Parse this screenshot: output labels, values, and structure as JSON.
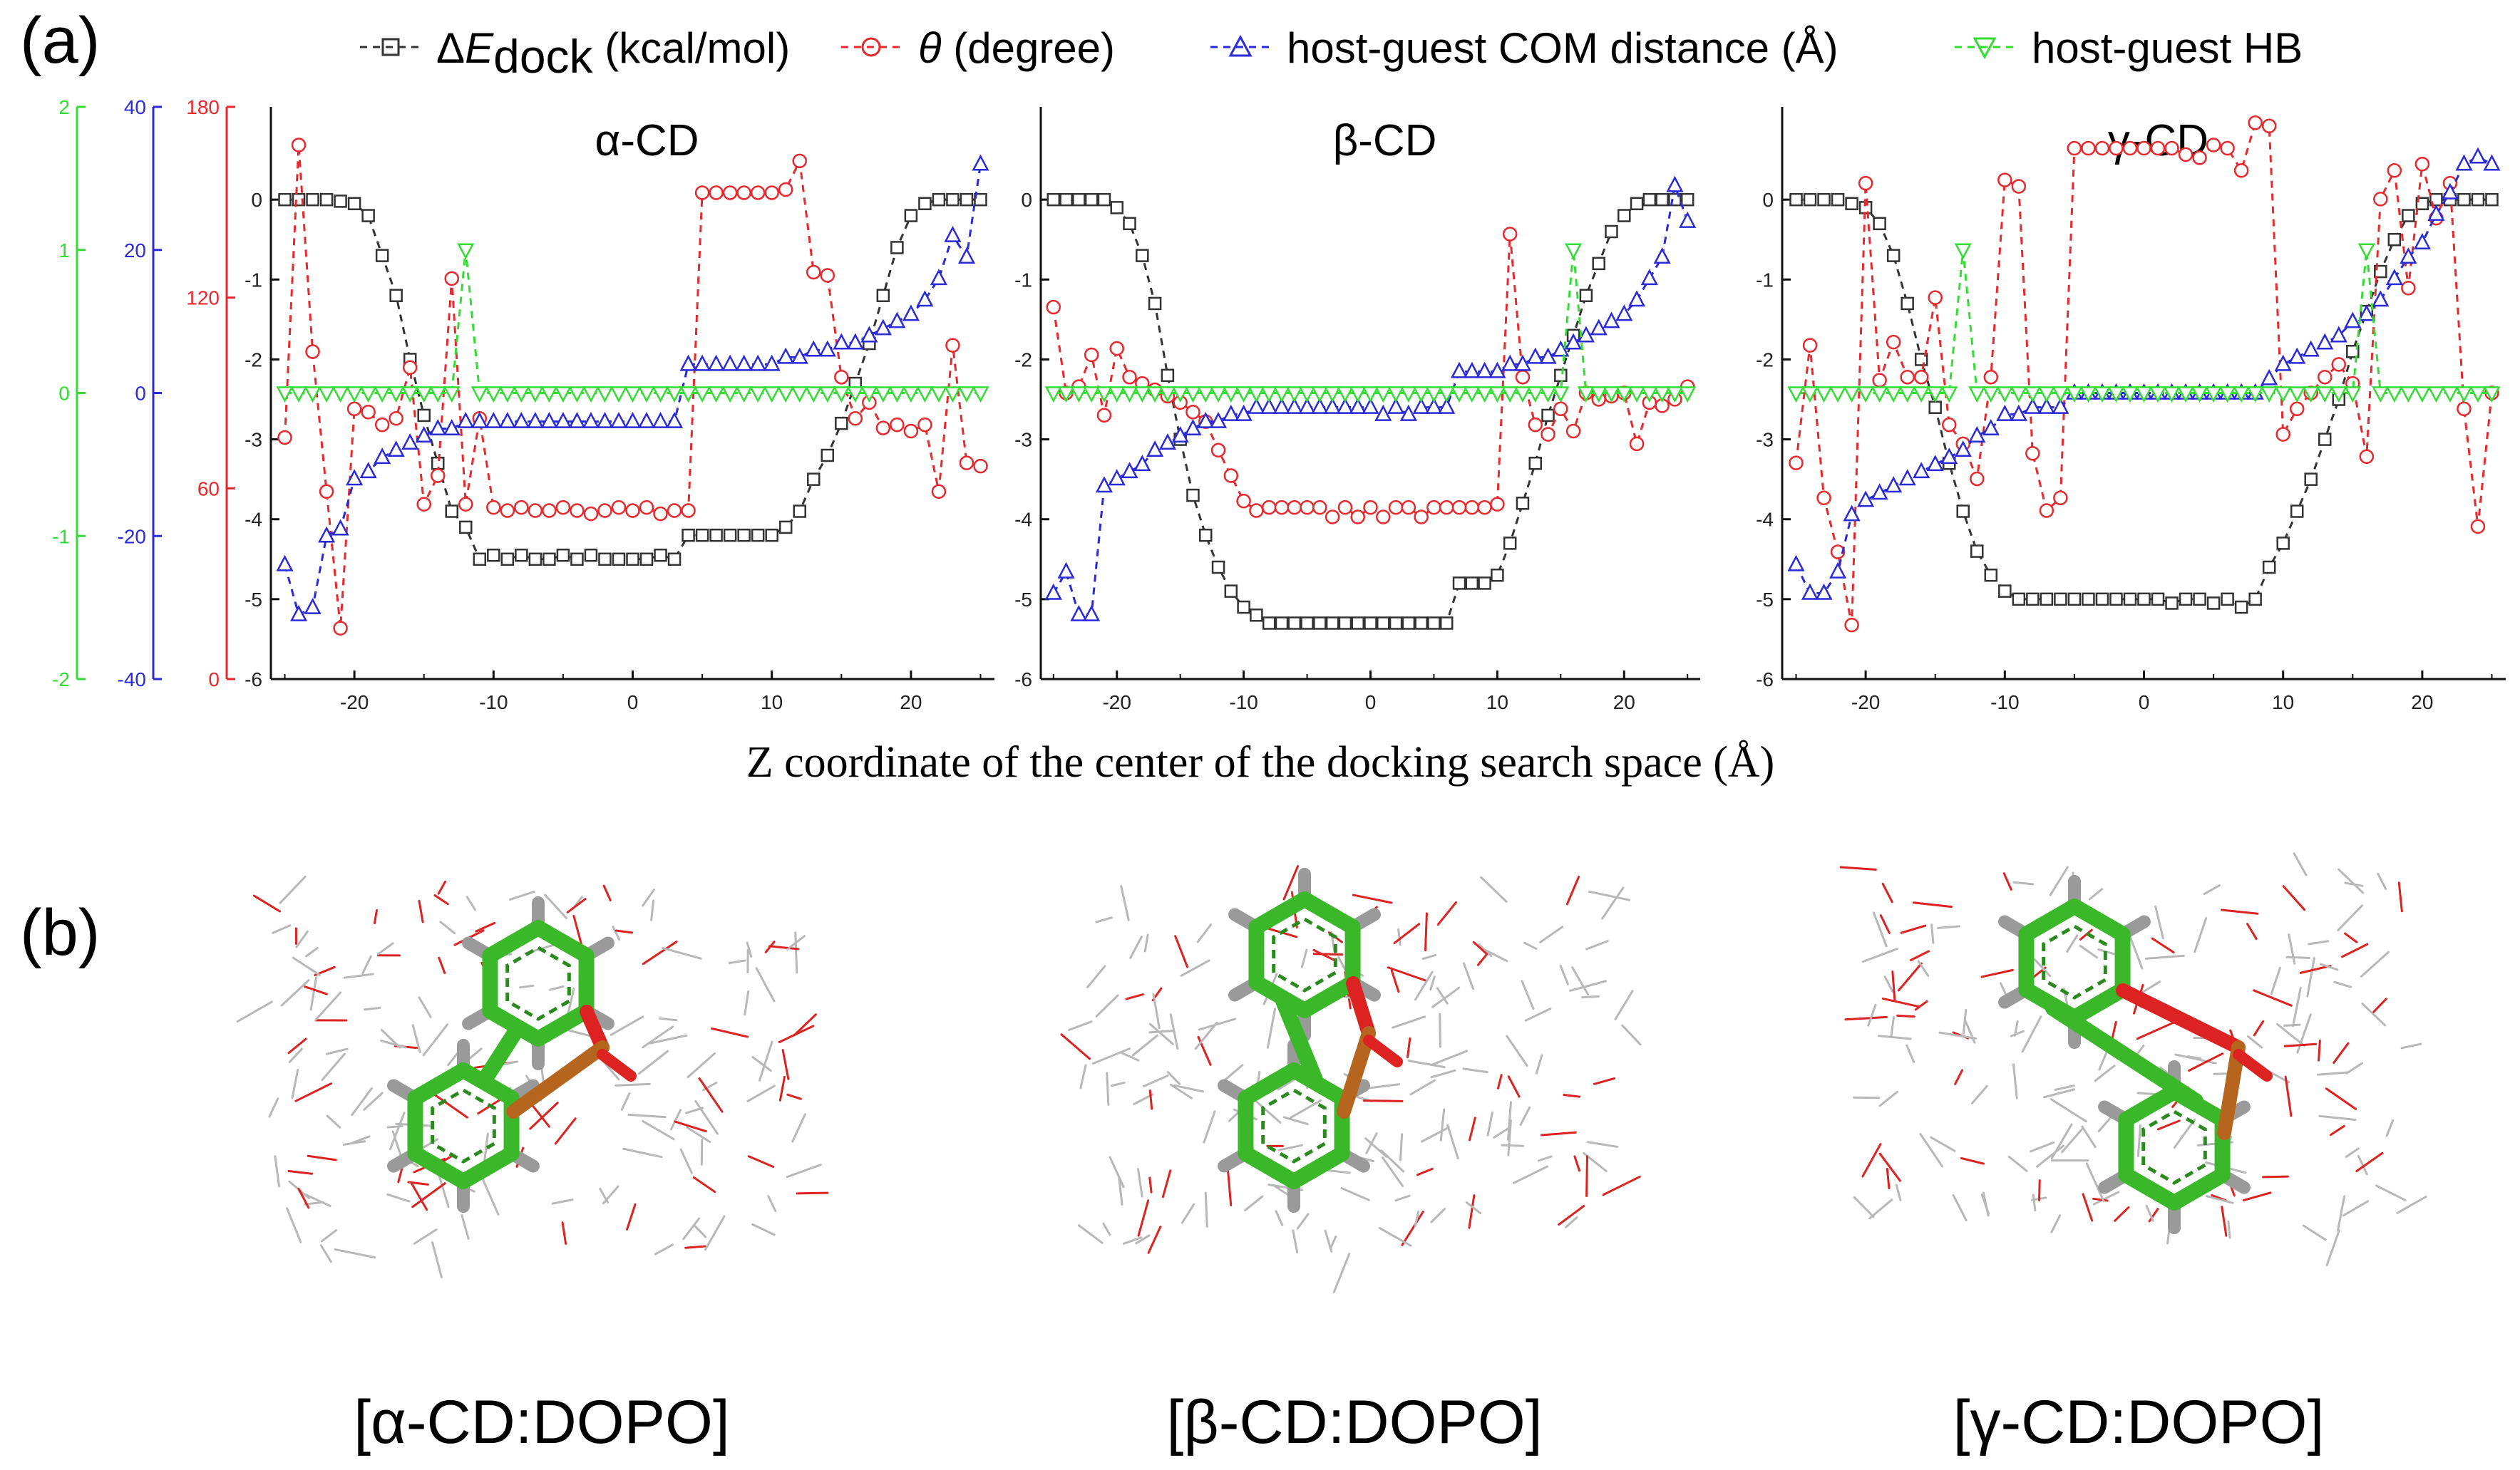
{
  "figure": {
    "panel_a_label": "(a)",
    "panel_b_label": "(b)",
    "x_axis_label": "Z coordinate of the center of the docking search space (Å)"
  },
  "legend": [
    {
      "key": "E",
      "prefix": "Δ",
      "symbol": "E",
      "subscript": "dock",
      "suffix": " (kcal/mol)",
      "color": "#333333",
      "marker": "square"
    },
    {
      "key": "theta",
      "prefix": "",
      "symbol": "θ",
      "subscript": "",
      "suffix": " (degree)",
      "color": "#e8282d",
      "marker": "circle"
    },
    {
      "key": "com",
      "prefix": "",
      "symbol": "",
      "subscript": "",
      "suffix": "host-guest COM distance (Å)",
      "color": "#2a2ad8",
      "marker": "triangle-up"
    },
    {
      "key": "hb",
      "prefix": "",
      "symbol": "",
      "subscript": "",
      "suffix": "host-guest HB",
      "color": "#33dd33",
      "marker": "triangle-down"
    }
  ],
  "chart_data": [
    {
      "type": "line",
      "title": "α-CD",
      "x": [
        -25,
        -24,
        -23,
        -22,
        -21,
        -20,
        -19,
        -18,
        -17,
        -16,
        -15,
        -14,
        -13,
        -12,
        -11,
        -10,
        -9,
        -8,
        -7,
        -6,
        -5,
        -4,
        -3,
        -2,
        -1,
        0,
        1,
        2,
        3,
        4,
        5,
        6,
        7,
        8,
        9,
        10,
        11,
        12,
        13,
        14,
        15,
        16,
        17,
        18,
        19,
        20,
        21,
        22,
        23,
        24,
        25
      ],
      "xlim": [
        -26,
        26
      ],
      "xticks": [
        -20,
        -10,
        0,
        10,
        20
      ],
      "series": [
        {
          "key": "E",
          "axis": "left",
          "ylim": [
            -6,
            1
          ],
          "values": [
            0,
            0,
            0,
            0,
            -0.02,
            -0.05,
            -0.2,
            -0.7,
            -1.2,
            -2.0,
            -2.7,
            -3.3,
            -3.9,
            -4.1,
            -4.5,
            -4.45,
            -4.5,
            -4.45,
            -4.5,
            -4.5,
            -4.45,
            -4.5,
            -4.45,
            -4.5,
            -4.5,
            -4.5,
            -4.5,
            -4.45,
            -4.5,
            -4.2,
            -4.2,
            -4.2,
            -4.2,
            -4.2,
            -4.2,
            -4.2,
            -4.1,
            -3.9,
            -3.5,
            -3.2,
            -2.8,
            -2.3,
            -1.8,
            -1.2,
            -0.6,
            -0.2,
            -0.05,
            0,
            0,
            0,
            0
          ]
        },
        {
          "key": "theta",
          "axis": "theta",
          "ylim": [
            0,
            180
          ],
          "values": [
            76,
            168,
            103,
            59,
            16,
            85,
            84,
            80,
            82,
            98,
            55,
            64,
            126,
            55,
            82,
            54,
            53,
            54,
            53,
            53,
            54,
            53,
            52,
            53,
            54,
            53,
            54,
            52,
            53,
            53,
            153,
            153,
            153,
            153,
            153,
            153,
            154,
            163,
            128,
            127,
            95,
            82,
            87,
            79,
            80,
            78,
            80,
            59,
            105,
            68,
            67
          ]
        },
        {
          "key": "com",
          "axis": "com",
          "ylim": [
            -40,
            40
          ],
          "values": [
            -24,
            -31,
            -30,
            -20,
            -19,
            -12,
            -11,
            -9,
            -8,
            -7,
            -6,
            -5,
            -5,
            -4,
            -4,
            -4,
            -4,
            -4,
            -4,
            -4,
            -4,
            -4,
            -4,
            -4,
            -4,
            -4,
            -4,
            -4,
            -4,
            4,
            4,
            4,
            4,
            4,
            4,
            4,
            5,
            5,
            6,
            6,
            7,
            7,
            8,
            9,
            10,
            11,
            13,
            16,
            22,
            19,
            32
          ]
        },
        {
          "key": "hb",
          "axis": "hb",
          "ylim": [
            -2,
            2
          ],
          "values": [
            0,
            0,
            0,
            0,
            0,
            0,
            0,
            0,
            0,
            0,
            0,
            0,
            0,
            1,
            0,
            0,
            0,
            0,
            0,
            0,
            0,
            0,
            0,
            0,
            0,
            0,
            0,
            0,
            0,
            0,
            0,
            0,
            0,
            0,
            0,
            0,
            0,
            0,
            0,
            0,
            0,
            0,
            0,
            0,
            0,
            0,
            0,
            0,
            0,
            0,
            0
          ]
        }
      ]
    },
    {
      "type": "line",
      "title": "β-CD",
      "x": [
        -25,
        -24,
        -23,
        -22,
        -21,
        -20,
        -19,
        -18,
        -17,
        -16,
        -15,
        -14,
        -13,
        -12,
        -11,
        -10,
        -9,
        -8,
        -7,
        -6,
        -5,
        -4,
        -3,
        -2,
        -1,
        0,
        1,
        2,
        3,
        4,
        5,
        6,
        7,
        8,
        9,
        10,
        11,
        12,
        13,
        14,
        15,
        16,
        17,
        18,
        19,
        20,
        21,
        22,
        23,
        24,
        25
      ],
      "xlim": [
        -26,
        26
      ],
      "xticks": [
        -20,
        -10,
        0,
        10,
        20
      ],
      "series": [
        {
          "key": "E",
          "axis": "left",
          "ylim": [
            -6,
            1
          ],
          "values": [
            0,
            0,
            0,
            0,
            0,
            -0.1,
            -0.3,
            -0.7,
            -1.3,
            -2.2,
            -3.0,
            -3.7,
            -4.2,
            -4.6,
            -4.9,
            -5.1,
            -5.2,
            -5.3,
            -5.3,
            -5.3,
            -5.3,
            -5.3,
            -5.3,
            -5.3,
            -5.3,
            -5.3,
            -5.3,
            -5.3,
            -5.3,
            -5.3,
            -5.3,
            -5.3,
            -4.8,
            -4.8,
            -4.8,
            -4.7,
            -4.3,
            -3.8,
            -3.3,
            -2.7,
            -2.2,
            -1.7,
            -1.2,
            -0.8,
            -0.4,
            -0.2,
            -0.05,
            0,
            0,
            0,
            0
          ]
        },
        {
          "key": "theta",
          "axis": "theta",
          "ylim": [
            0,
            180
          ],
          "values": [
            117,
            90,
            92,
            102,
            83,
            104,
            95,
            93,
            91,
            89,
            87,
            84,
            81,
            72,
            64,
            56,
            53,
            54,
            54,
            54,
            54,
            54,
            51,
            54,
            51,
            54,
            51,
            54,
            54,
            51,
            54,
            54,
            54,
            54,
            54,
            55,
            140,
            95,
            80,
            77,
            85,
            78,
            90,
            88,
            89,
            90,
            74,
            87,
            86,
            88,
            92
          ]
        },
        {
          "key": "com",
          "axis": "com",
          "ylim": [
            -40,
            40
          ],
          "values": [
            -28,
            -25,
            -31,
            -31,
            -13,
            -12,
            -11,
            -10,
            -8,
            -7,
            -6,
            -5,
            -4,
            -4,
            -3,
            -3,
            -2,
            -2,
            -2,
            -2,
            -2,
            -2,
            -2,
            -2,
            -2,
            -2,
            -3,
            -2,
            -3,
            -2,
            -2,
            -2,
            3,
            3,
            3,
            3,
            4,
            4,
            5,
            5,
            6,
            7,
            8,
            9,
            10,
            11,
            13,
            16,
            19,
            29,
            24
          ]
        },
        {
          "key": "hb",
          "axis": "hb",
          "ylim": [
            -2,
            2
          ],
          "values": [
            0,
            0,
            0,
            0,
            0,
            0,
            0,
            0,
            0,
            0,
            0,
            0,
            0,
            0,
            0,
            0,
            0,
            0,
            0,
            0,
            0,
            0,
            0,
            0,
            0,
            0,
            0,
            0,
            0,
            0,
            0,
            0,
            0,
            0,
            0,
            0,
            0,
            0,
            0,
            0,
            0,
            1,
            0,
            0,
            0,
            0,
            0,
            0,
            0,
            0,
            0
          ]
        }
      ]
    },
    {
      "type": "line",
      "title": "γ-CD",
      "x": [
        -25,
        -24,
        -23,
        -22,
        -21,
        -20,
        -19,
        -18,
        -17,
        -16,
        -15,
        -14,
        -13,
        -12,
        -11,
        -10,
        -9,
        -8,
        -7,
        -6,
        -5,
        -4,
        -3,
        -2,
        -1,
        0,
        1,
        2,
        3,
        4,
        5,
        6,
        7,
        8,
        9,
        10,
        11,
        12,
        13,
        14,
        15,
        16,
        17,
        18,
        19,
        20,
        21,
        22,
        23,
        24,
        25
      ],
      "xlim": [
        -26,
        26
      ],
      "xticks": [
        -20,
        -10,
        0,
        10,
        20
      ],
      "series": [
        {
          "key": "E",
          "axis": "left",
          "ylim": [
            -6,
            1
          ],
          "values": [
            0,
            0,
            0,
            0,
            -0.05,
            -0.1,
            -0.3,
            -0.7,
            -1.3,
            -2.0,
            -2.6,
            -3.3,
            -3.9,
            -4.4,
            -4.7,
            -4.9,
            -5.0,
            -5.0,
            -5.0,
            -5.0,
            -5.0,
            -5.0,
            -5.0,
            -5.0,
            -5.0,
            -5.0,
            -5.0,
            -5.05,
            -5.0,
            -5.0,
            -5.05,
            -5.0,
            -5.1,
            -5.0,
            -4.6,
            -4.3,
            -3.9,
            -3.5,
            -3.0,
            -2.5,
            -1.9,
            -1.4,
            -0.9,
            -0.5,
            -0.2,
            -0.05,
            0,
            0,
            0,
            0,
            0
          ]
        },
        {
          "key": "theta",
          "axis": "theta",
          "ylim": [
            0,
            180
          ],
          "values": [
            68,
            105,
            57,
            40,
            17,
            156,
            94,
            106,
            95,
            95,
            120,
            80,
            74,
            63,
            95,
            157,
            155,
            71,
            53,
            57,
            167,
            167,
            167,
            167,
            167,
            167,
            167,
            167,
            165,
            164,
            168,
            167,
            160,
            175,
            174,
            77,
            85,
            90,
            95,
            99,
            93,
            70,
            151,
            160,
            123,
            162,
            145,
            156,
            85,
            48,
            90
          ]
        },
        {
          "key": "com",
          "axis": "com",
          "ylim": [
            -40,
            40
          ],
          "values": [
            -24,
            -28,
            -28,
            -25,
            -17,
            -15,
            -14,
            -13,
            -12,
            -11,
            -10,
            -9,
            -8,
            -6,
            -5,
            -3,
            -3,
            -2,
            -2,
            -2,
            0,
            0,
            0,
            0,
            0,
            0,
            0,
            0,
            0,
            0,
            0,
            0,
            0,
            0,
            2,
            4,
            5,
            6,
            7,
            8,
            10,
            11,
            13,
            16,
            19,
            21,
            25,
            28,
            32,
            33,
            32
          ]
        },
        {
          "key": "hb",
          "axis": "hb",
          "ylim": [
            -2,
            2
          ],
          "values": [
            0,
            0,
            0,
            0,
            0,
            0,
            0,
            0,
            0,
            0,
            0,
            0,
            1,
            0,
            0,
            0,
            0,
            0,
            0,
            0,
            0,
            0,
            0,
            0,
            0,
            0,
            0,
            0,
            0,
            0,
            0,
            0,
            0,
            0,
            0,
            0,
            0,
            0,
            0,
            0,
            0,
            1,
            0,
            0,
            0,
            0,
            0,
            0,
            0,
            0,
            0
          ]
        }
      ]
    }
  ],
  "axes": {
    "hb": {
      "color": "#33dd33",
      "ticks": [
        "2",
        "1",
        "0",
        "-1",
        "-2"
      ]
    },
    "com": {
      "color": "#2a2ad8",
      "ticks": [
        "40",
        "20",
        "0",
        "-20",
        "-40"
      ]
    },
    "theta": {
      "color": "#e8282d",
      "ticks": [
        "180",
        "120",
        "60",
        "0"
      ]
    },
    "energy": {
      "color": "#111111",
      "ticks": [
        "0",
        "-1",
        "-2",
        "-3",
        "-4",
        "-5",
        "-6"
      ]
    }
  },
  "structures": [
    {
      "caption": "[α-CD:DOPO]",
      "host": "α-CD",
      "guest": "DOPO"
    },
    {
      "caption": "[β-CD:DOPO]",
      "host": "β-CD",
      "guest": "DOPO"
    },
    {
      "caption": "[γ-CD:DOPO]",
      "host": "γ-CD",
      "guest": "DOPO"
    }
  ],
  "colors": {
    "carbon_guest": "#3ab82a",
    "host_carbon": "#b8b8b8",
    "oxygen": "#dd2222",
    "phosphorus": "#b5651d",
    "hydrogen": "#9a9a9a"
  }
}
